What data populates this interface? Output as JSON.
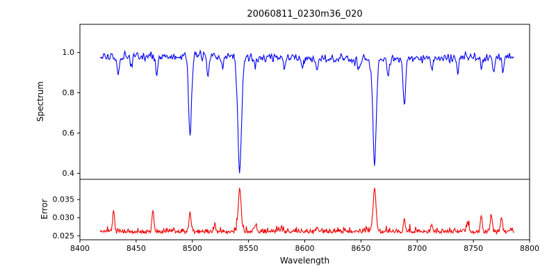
{
  "chart_data": [
    {
      "type": "line",
      "name": "spectrum",
      "title": "20060811_0230m36_020",
      "ylabel": "Spectrum",
      "series_color": "#0000ee",
      "xlim": [
        8400,
        8800
      ],
      "ylim": [
        0.37,
        1.14
      ],
      "yticks": [
        0.4,
        0.6,
        0.8,
        1.0
      ],
      "ytick_labels": [
        "0.4",
        "0.6",
        "0.8",
        "1.0"
      ],
      "grid": false,
      "x_start": 8418,
      "x_end": 8786,
      "n_points": 737,
      "continuum": 0.975,
      "noise_sigma": 0.012,
      "continuum_variation": {
        "amplitude": 0.008,
        "period": 55
      },
      "absorption_lines": [
        {
          "center": 8434.0,
          "depth": 0.08,
          "sigma": 0.9
        },
        {
          "center": 8446.0,
          "depth": 0.06,
          "sigma": 0.9
        },
        {
          "center": 8468.4,
          "depth": 0.1,
          "sigma": 0.9
        },
        {
          "center": 8498.0,
          "depth": 0.4,
          "sigma": 1.3
        },
        {
          "center": 8514.0,
          "depth": 0.09,
          "sigma": 0.9
        },
        {
          "center": 8527.0,
          "depth": 0.06,
          "sigma": 0.9
        },
        {
          "center": 8542.1,
          "depth": 0.57,
          "sigma": 1.7
        },
        {
          "center": 8556.0,
          "depth": 0.05,
          "sigma": 0.9
        },
        {
          "center": 8582.0,
          "depth": 0.06,
          "sigma": 0.9
        },
        {
          "center": 8598.0,
          "depth": 0.05,
          "sigma": 0.9
        },
        {
          "center": 8611.0,
          "depth": 0.07,
          "sigma": 0.9
        },
        {
          "center": 8648.0,
          "depth": 0.07,
          "sigma": 0.9
        },
        {
          "center": 8662.1,
          "depth": 0.52,
          "sigma": 1.5
        },
        {
          "center": 8674.0,
          "depth": 0.08,
          "sigma": 0.9
        },
        {
          "center": 8688.6,
          "depth": 0.24,
          "sigma": 1.0
        },
        {
          "center": 8713.0,
          "depth": 0.06,
          "sigma": 0.9
        },
        {
          "center": 8736.0,
          "depth": 0.07,
          "sigma": 0.9
        },
        {
          "center": 8757.0,
          "depth": 0.06,
          "sigma": 0.9
        },
        {
          "center": 8768.0,
          "depth": 0.08,
          "sigma": 0.9
        },
        {
          "center": 8776.0,
          "depth": 0.07,
          "sigma": 0.9
        }
      ]
    },
    {
      "type": "line",
      "name": "error",
      "ylabel": "Error",
      "xlabel": "Wavelength",
      "series_color": "#ee0000",
      "xlim": [
        8400,
        8800
      ],
      "ylim": [
        0.0239,
        0.0406
      ],
      "yticks": [
        0.025,
        0.03,
        0.035
      ],
      "ytick_labels": [
        "0.025",
        "0.030",
        "0.035"
      ],
      "xticks": [
        8400,
        8450,
        8500,
        8550,
        8600,
        8650,
        8700,
        8750,
        8800
      ],
      "xtick_labels": [
        "8400",
        "8450",
        "8500",
        "8550",
        "8600",
        "8650",
        "8700",
        "8750",
        "8800"
      ],
      "grid": false,
      "x_start": 8418,
      "x_end": 8786,
      "n_points": 737,
      "baseline": 0.0258,
      "noise_sigma": 0.00025,
      "noise_half_sigma": 0.0006,
      "peaks": [
        {
          "center": 8430.0,
          "height": 0.006,
          "sigma": 0.8
        },
        {
          "center": 8465.0,
          "height": 0.0062,
          "sigma": 0.8
        },
        {
          "center": 8498.0,
          "height": 0.0052,
          "sigma": 1.0
        },
        {
          "center": 8520.0,
          "height": 0.0022,
          "sigma": 0.8
        },
        {
          "center": 8542.1,
          "height": 0.0118,
          "sigma": 1.3
        },
        {
          "center": 8556.0,
          "height": 0.002,
          "sigma": 0.8
        },
        {
          "center": 8611.0,
          "height": 0.0015,
          "sigma": 0.8
        },
        {
          "center": 8662.1,
          "height": 0.0118,
          "sigma": 1.3
        },
        {
          "center": 8688.6,
          "height": 0.0035,
          "sigma": 0.8
        },
        {
          "center": 8713.0,
          "height": 0.0018,
          "sigma": 0.8
        },
        {
          "center": 8745.0,
          "height": 0.0025,
          "sigma": 0.8
        },
        {
          "center": 8757.0,
          "height": 0.004,
          "sigma": 0.9
        },
        {
          "center": 8766.0,
          "height": 0.0045,
          "sigma": 0.9
        },
        {
          "center": 8775.0,
          "height": 0.004,
          "sigma": 0.9
        }
      ]
    }
  ]
}
